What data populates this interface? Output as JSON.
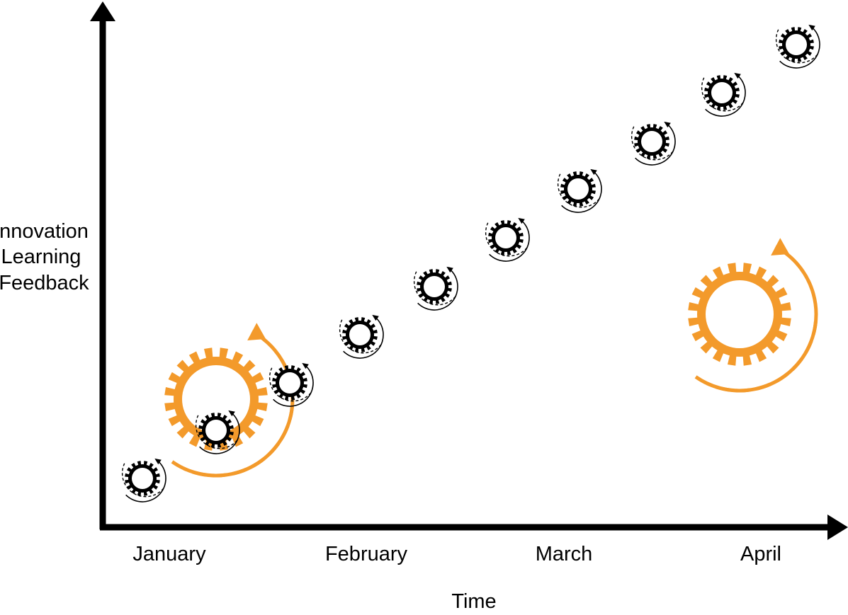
{
  "axes": {
    "y_label_lines": [
      "Innovation",
      "Learning",
      "Feedback"
    ],
    "x_label": "Time",
    "months": [
      "January",
      "February",
      "March",
      "April"
    ]
  },
  "colors": {
    "axis": "#000000",
    "small_cycle": "#000000",
    "large_cycle": "#F39A2B",
    "background": "#FFFFFF"
  },
  "diagram": {
    "small_cycle_count": 10,
    "large_cycle_count": 2,
    "small_cycle_icon": "gear-icon",
    "large_cycle_icon": "gear-icon"
  }
}
